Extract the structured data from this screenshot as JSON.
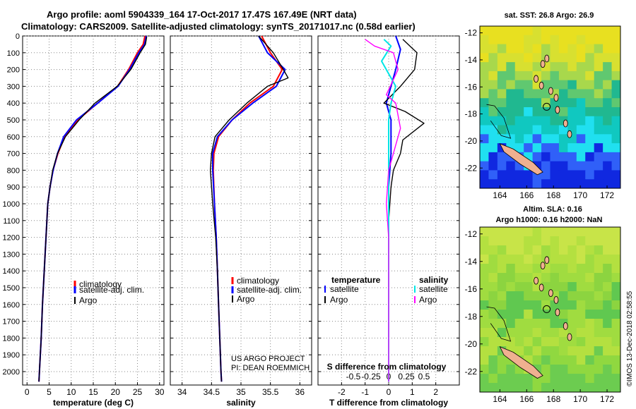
{
  "header": {
    "line1": "Argo profile: aoml 5904339_164 17-Oct-2017 17.47S 167.49E (NRT data)",
    "line2": "Climatology: CARS2009. Satellite-adjusted climatology: synTS_20171017.nc (0.58d earlier)"
  },
  "colors": {
    "argo": "#000000",
    "climatology": "#ff0000",
    "satellite": "#0000ff",
    "sal_satellite": "#00e5e5",
    "sal_argo": "#ff00ff"
  },
  "chart_data": [
    {
      "type": "line",
      "name": "temperature profile",
      "xlabel": "temperature (deg C)",
      "ylabel": "pressure",
      "xlim": [
        -1,
        31
      ],
      "ylim": [
        2080,
        0
      ],
      "xticks": [
        0,
        5,
        10,
        15,
        20,
        25,
        30
      ],
      "yticks": [
        0,
        100,
        200,
        300,
        400,
        500,
        600,
        700,
        800,
        900,
        1000,
        1100,
        1200,
        1300,
        1400,
        1500,
        1600,
        1700,
        1800,
        1900,
        2000
      ],
      "legend": [
        "climatology",
        "satellite-adj. clim.",
        "Argo"
      ],
      "series": [
        {
          "name": "climatology",
          "color": "#ff0000",
          "points": [
            [
              26.7,
              0
            ],
            [
              26.3,
              50
            ],
            [
              25,
              100
            ],
            [
              23,
              200
            ],
            [
              20.5,
              300
            ],
            [
              16,
              400
            ],
            [
              11.5,
              500
            ],
            [
              8.5,
              600
            ],
            [
              7,
              700
            ],
            [
              5.9,
              800
            ],
            [
              5.2,
              900
            ],
            [
              4.7,
              1000
            ],
            [
              4.3,
              1200
            ],
            [
              3.9,
              1400
            ],
            [
              3.5,
              1600
            ],
            [
              3.2,
              1800
            ],
            [
              2.8,
              2000
            ],
            [
              2.7,
              2060
            ]
          ]
        },
        {
          "name": "satellite-adj. clim.",
          "color": "#0000ff",
          "points": [
            [
              27,
              0
            ],
            [
              26.6,
              50
            ],
            [
              25.3,
              100
            ],
            [
              23.2,
              200
            ],
            [
              20.6,
              300
            ],
            [
              16,
              400
            ],
            [
              11.2,
              500
            ],
            [
              8.3,
              600
            ],
            [
              6.9,
              700
            ],
            [
              5.9,
              800
            ],
            [
              5.2,
              900
            ],
            [
              4.7,
              1000
            ],
            [
              4.3,
              1200
            ],
            [
              3.9,
              1400
            ],
            [
              3.5,
              1600
            ],
            [
              3.2,
              1800
            ],
            [
              2.8,
              2000
            ],
            [
              2.7,
              2060
            ]
          ]
        },
        {
          "name": "Argo",
          "color": "#000000",
          "points": [
            [
              27.1,
              5
            ],
            [
              26.8,
              50
            ],
            [
              25.6,
              100
            ],
            [
              23.5,
              200
            ],
            [
              20.4,
              300
            ],
            [
              15.4,
              400
            ],
            [
              11.8,
              500
            ],
            [
              8.7,
              600
            ],
            [
              6.9,
              700
            ],
            [
              5.8,
              800
            ],
            [
              5.2,
              900
            ],
            [
              4.7,
              1000
            ],
            [
              4.3,
              1200
            ],
            [
              3.9,
              1400
            ],
            [
              3.5,
              1600
            ],
            [
              3.2,
              1800
            ],
            [
              2.8,
              2000
            ],
            [
              2.7,
              2060
            ]
          ]
        }
      ]
    },
    {
      "type": "line",
      "name": "salinity profile",
      "xlabel": "salinity",
      "xlim": [
        33.8,
        36.2
      ],
      "ylim": [
        2080,
        0
      ],
      "xticks": [
        34,
        34.5,
        35,
        35.5,
        36
      ],
      "xticklabels": [
        "34",
        "34.5",
        "35",
        "35.5",
        "36"
      ],
      "legend": [
        "climatology",
        "satellite-adj. clim.",
        "Argo"
      ],
      "credits": [
        "US ARGO PROJECT",
        "PI: DEAN ROEMMICH"
      ],
      "series": [
        {
          "name": "climatology",
          "color": "#ff0000",
          "points": [
            [
              35.35,
              0
            ],
            [
              35.5,
              100
            ],
            [
              35.7,
              200
            ],
            [
              35.55,
              300
            ],
            [
              35.15,
              400
            ],
            [
              34.85,
              500
            ],
            [
              34.62,
              600
            ],
            [
              34.54,
              700
            ],
            [
              34.53,
              800
            ],
            [
              34.55,
              1000
            ],
            [
              34.58,
              1200
            ],
            [
              34.6,
              1400
            ],
            [
              34.62,
              1600
            ],
            [
              34.64,
              1800
            ],
            [
              34.66,
              2000
            ],
            [
              34.67,
              2060
            ]
          ]
        },
        {
          "name": "satellite-adj. clim.",
          "color": "#0000ff",
          "points": [
            [
              35.3,
              0
            ],
            [
              35.45,
              100
            ],
            [
              35.75,
              200
            ],
            [
              35.6,
              300
            ],
            [
              35.2,
              400
            ],
            [
              34.85,
              500
            ],
            [
              34.6,
              600
            ],
            [
              34.52,
              700
            ],
            [
              34.52,
              800
            ],
            [
              34.55,
              1000
            ],
            [
              34.58,
              1200
            ],
            [
              34.6,
              1400
            ],
            [
              34.62,
              1600
            ],
            [
              34.64,
              1800
            ],
            [
              34.66,
              2000
            ],
            [
              34.67,
              2060
            ]
          ]
        },
        {
          "name": "Argo",
          "color": "#000000",
          "points": [
            [
              35.3,
              0
            ],
            [
              35.55,
              100
            ],
            [
              35.72,
              200
            ],
            [
              35.8,
              250
            ],
            [
              35.45,
              300
            ],
            [
              35.1,
              400
            ],
            [
              34.8,
              500
            ],
            [
              34.56,
              600
            ],
            [
              34.5,
              700
            ],
            [
              34.48,
              800
            ],
            [
              34.52,
              1000
            ],
            [
              34.57,
              1200
            ],
            [
              34.6,
              1400
            ],
            [
              34.62,
              1600
            ],
            [
              34.64,
              1800
            ],
            [
              34.66,
              2000
            ],
            [
              34.67,
              2060
            ]
          ]
        }
      ]
    },
    {
      "type": "line",
      "name": "difference from climatology",
      "xlabel": "T difference from climatology",
      "xlabel_top": "S difference from climatology",
      "xlim": [
        -3,
        3
      ],
      "ylim": [
        2080,
        0
      ],
      "xticks": [
        -2,
        -1,
        0,
        1,
        2
      ],
      "xticklabels": [
        "-2",
        "-1",
        "0",
        "1",
        "2"
      ],
      "sticklabels": [
        "-0.5",
        "-0.25",
        "0",
        "0.25",
        "0.5"
      ],
      "legend_temperature_title": "temperature",
      "legend_salinity_title": "salinity",
      "legend_temperature": [
        "satellite",
        "Argo"
      ],
      "legend_salinity": [
        "satellite",
        "Argo"
      ],
      "series": [
        {
          "name": "temperature satellite",
          "color": "#0000ff",
          "points": [
            [
              0.3,
              0
            ],
            [
              0.5,
              80
            ],
            [
              0.3,
              200
            ],
            [
              0.1,
              300
            ],
            [
              -0.1,
              400
            ],
            [
              0.1,
              500
            ],
            [
              0.1,
              700
            ],
            [
              0,
              900
            ],
            [
              0,
              1200
            ],
            [
              0,
              2060
            ]
          ]
        },
        {
          "name": "temperature Argo",
          "color": "#000000",
          "points": [
            [
              0.6,
              20
            ],
            [
              1.2,
              100
            ],
            [
              1.1,
              200
            ],
            [
              0.5,
              300
            ],
            [
              -0.2,
              400
            ],
            [
              0.7,
              450
            ],
            [
              1.5,
              520
            ],
            [
              0.6,
              620
            ],
            [
              0.5,
              700
            ],
            [
              0.2,
              800
            ],
            [
              0.1,
              900
            ],
            [
              0,
              1100
            ],
            [
              0,
              1500
            ],
            [
              0,
              2060
            ]
          ]
        },
        {
          "name": "salinity satellite",
          "color": "#00e5e5",
          "points": [
            [
              -0.2,
              20
            ],
            [
              0.1,
              60
            ],
            [
              -0.3,
              150
            ],
            [
              0.3,
              300
            ],
            [
              0.1,
              400
            ],
            [
              0,
              500
            ],
            [
              0,
              700
            ],
            [
              0,
              900
            ],
            [
              0,
              1200
            ],
            [
              0,
              2060
            ]
          ]
        },
        {
          "name": "salinity Argo",
          "color": "#ff00ff",
          "points": [
            [
              -1,
              20
            ],
            [
              -0.6,
              60
            ],
            [
              0.2,
              100
            ],
            [
              0.4,
              200
            ],
            [
              -0.1,
              350
            ],
            [
              0.3,
              400
            ],
            [
              0.5,
              550
            ],
            [
              0.3,
              650
            ],
            [
              0,
              800
            ],
            [
              -0.1,
              1000
            ],
            [
              0,
              1200
            ],
            [
              0,
              2060
            ]
          ]
        }
      ]
    }
  ],
  "maps": [
    {
      "name": "sst",
      "title": "sat. SST: 26.8 Argo: 26.9",
      "lat_ticks": [
        "-12",
        "-14",
        "-16",
        "-18",
        "-20",
        "-22"
      ],
      "lon_ticks": [
        "164",
        "166",
        "168",
        "170",
        "172"
      ],
      "marker": {
        "lon": 167.49,
        "lat": -17.47
      }
    },
    {
      "name": "sla",
      "title_line1": "Altim. SLA: 0.16",
      "title_line2": "Argo h1000: 0.16 h2000: NaN",
      "lat_ticks": [
        "-12",
        "-14",
        "-16",
        "-18",
        "-20",
        "-22"
      ],
      "lon_ticks": [
        "164",
        "166",
        "168",
        "170",
        "172"
      ],
      "marker": {
        "lon": 167.49,
        "lat": -17.47
      }
    }
  ],
  "footer": {
    "stamp": "©IMOS 13-Dec-2018 02:58:55"
  }
}
